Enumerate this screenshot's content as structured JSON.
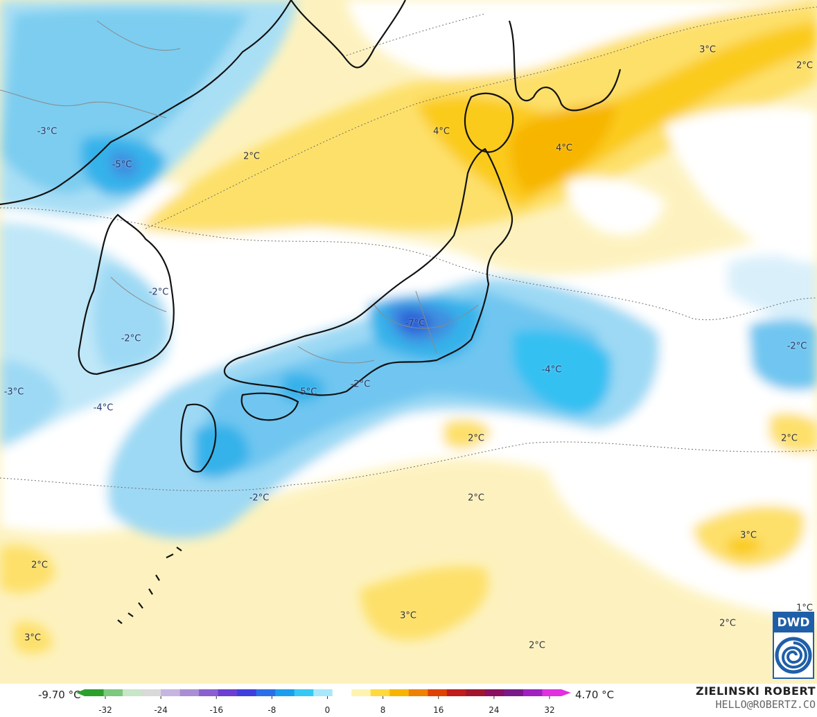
{
  "map": {
    "labels": [
      {
        "text": "3°C"
      },
      {
        "text": "2°C"
      },
      {
        "text": "-3°C"
      },
      {
        "text": "4°C"
      },
      {
        "text": "4°C"
      },
      {
        "text": "2°C"
      },
      {
        "text": "-5°C"
      },
      {
        "text": "-2°C"
      },
      {
        "text": "-2°C"
      },
      {
        "text": "-7°C"
      },
      {
        "text": "-2°C"
      },
      {
        "text": "-4°C"
      },
      {
        "text": "-3°C"
      },
      {
        "text": "-2°C"
      },
      {
        "text": "-5°C"
      },
      {
        "text": "-4°C"
      },
      {
        "text": "2°C"
      },
      {
        "text": "2°C"
      },
      {
        "text": "2°C"
      },
      {
        "text": "-2°C"
      },
      {
        "text": "3°C"
      },
      {
        "text": "2°C"
      },
      {
        "text": "1°C"
      },
      {
        "text": "3°C"
      },
      {
        "text": "2°C"
      },
      {
        "text": "3°C"
      },
      {
        "text": "2°C"
      }
    ]
  },
  "colorbar": {
    "min_label": "-9.70 °C",
    "max_label": "4.70 °C",
    "ticks": [
      "-32",
      "-24",
      "-16",
      "-8",
      "0",
      "8",
      "16",
      "24",
      "32"
    ],
    "colors": [
      "#2ca02c",
      "#7dc97d",
      "#c8e6c8",
      "#d9d9d9",
      "#c6b5e0",
      "#a98ed6",
      "#8a5fd0",
      "#6a3fd1",
      "#3f3fe0",
      "#2a6fe8",
      "#1a9fee",
      "#35c8f5",
      "#a9e7fb",
      "#ffffff",
      "#fff3b0",
      "#ffd93d",
      "#f7b500",
      "#f08000",
      "#e04000",
      "#c01c1c",
      "#a0162f",
      "#8a1060",
      "#7a1a8a",
      "#a020c0",
      "#e030e0"
    ]
  },
  "logo": {
    "text": "DWD",
    "colors": {
      "primary": "#1f5fa8"
    }
  },
  "credits": {
    "name": "ZIELINSKI ROBERT",
    "email": "HELLO@ROBERTZ.CO"
  }
}
